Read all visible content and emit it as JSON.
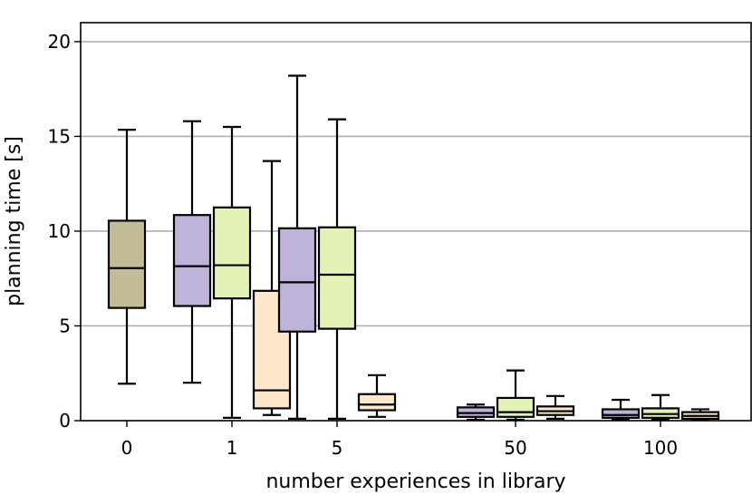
{
  "chart_data": {
    "type": "box",
    "title": "",
    "xlabel": "number experiences in library",
    "ylabel": "planning time [s]",
    "ylim": [
      0,
      21
    ],
    "yticks": [
      0,
      5,
      10,
      15,
      20
    ],
    "grid": "horizontal",
    "categories": [
      "0",
      "1",
      "5",
      "50",
      "100"
    ],
    "series_colors": [
      "#c2bc97",
      "#c0b3d9",
      "#e2f3b5",
      "#fde8c9"
    ],
    "boxes": [
      {
        "category": "0",
        "color": "#c2bc97",
        "whislo": 1.95,
        "q1": 5.95,
        "med": 8.05,
        "q3": 10.55,
        "whishi": 15.35
      },
      {
        "category": "1",
        "color": "#c0b3d9",
        "whislo": 2.0,
        "q1": 6.05,
        "med": 8.15,
        "q3": 10.85,
        "whishi": 15.8
      },
      {
        "category": "1",
        "color": "#e2f3b5",
        "whislo": 0.15,
        "q1": 6.45,
        "med": 8.2,
        "q3": 11.25,
        "whishi": 15.5
      },
      {
        "category": "1",
        "color": "#fde8c9",
        "whislo": 0.3,
        "q1": 0.65,
        "med": 1.6,
        "q3": 6.85,
        "whishi": 13.7
      },
      {
        "category": "5",
        "color": "#c0b3d9",
        "whislo": 0.1,
        "q1": 4.7,
        "med": 7.3,
        "q3": 10.15,
        "whishi": 18.2
      },
      {
        "category": "5",
        "color": "#e2f3b5",
        "whislo": 0.1,
        "q1": 4.85,
        "med": 7.7,
        "q3": 10.2,
        "whishi": 15.9
      },
      {
        "category": "5",
        "color": "#fde8c9",
        "whislo": 0.2,
        "q1": 0.55,
        "med": 0.85,
        "q3": 1.4,
        "whishi": 2.4
      },
      {
        "category": "50",
        "color": "#c0b3d9",
        "whislo": 0.05,
        "q1": 0.2,
        "med": 0.4,
        "q3": 0.7,
        "whishi": 0.85
      },
      {
        "category": "50",
        "color": "#e2f3b5",
        "whislo": 0.05,
        "q1": 0.2,
        "med": 0.45,
        "q3": 1.2,
        "whishi": 2.65
      },
      {
        "category": "50",
        "color": "#fde8c9",
        "whislo": 0.1,
        "q1": 0.3,
        "med": 0.5,
        "q3": 0.75,
        "whishi": 1.3
      },
      {
        "category": "100",
        "color": "#c0b3d9",
        "whislo": 0.05,
        "q1": 0.15,
        "med": 0.3,
        "q3": 0.6,
        "whishi": 1.1
      },
      {
        "category": "100",
        "color": "#e2f3b5",
        "whislo": 0.05,
        "q1": 0.15,
        "med": 0.35,
        "q3": 0.65,
        "whishi": 1.35
      },
      {
        "category": "100",
        "color": "#fde8c9",
        "whislo": 0.05,
        "q1": 0.1,
        "med": 0.25,
        "q3": 0.45,
        "whishi": 0.6
      }
    ]
  }
}
